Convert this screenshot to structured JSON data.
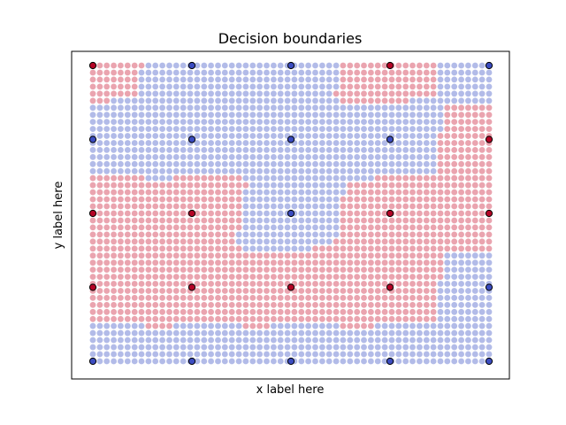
{
  "chart_data": {
    "type": "scatter",
    "title": "Decision boundaries",
    "xlabel": "x label here",
    "ylabel": "y label here",
    "xticks": [],
    "yticks": [],
    "grid": false,
    "legend": "none",
    "colors": {
      "class_0_background": "#aab4e6",
      "class_1_background": "#e89aa6",
      "class_0_point": "#3b4cc0",
      "class_1_point": "#b40426",
      "point_edge": "#000000"
    },
    "grid_resolution": {
      "cols": 58,
      "rows": 43
    },
    "training_points": {
      "x": [
        0,
        1,
        2,
        3,
        4,
        0,
        1,
        2,
        3,
        4,
        0,
        1,
        2,
        3,
        4,
        0,
        1,
        2,
        3,
        4,
        0,
        1,
        2,
        3,
        4
      ],
      "y": [
        4,
        4,
        4,
        4,
        4,
        3,
        3,
        3,
        3,
        3,
        2,
        2,
        2,
        2,
        2,
        1,
        1,
        1,
        1,
        1,
        0,
        0,
        0,
        0,
        0
      ],
      "class": [
        1,
        0,
        0,
        1,
        0,
        0,
        0,
        0,
        0,
        1,
        1,
        1,
        0,
        1,
        1,
        1,
        1,
        1,
        1,
        0,
        0,
        0,
        0,
        0,
        0
      ]
    },
    "xlim": [
      -0.2,
      4.2
    ],
    "ylim": [
      -0.2,
      4.2
    ]
  }
}
